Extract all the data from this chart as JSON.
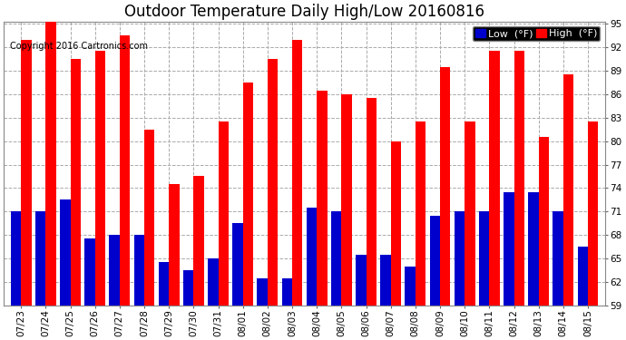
{
  "title": "Outdoor Temperature Daily High/Low 20160816",
  "copyright": "Copyright 2016 Cartronics.com",
  "legend_low": "Low  (°F)",
  "legend_high": "High  (°F)",
  "dates": [
    "07/23",
    "07/24",
    "07/25",
    "07/26",
    "07/27",
    "07/28",
    "07/29",
    "07/30",
    "07/31",
    "08/01",
    "08/02",
    "08/03",
    "08/04",
    "08/05",
    "08/06",
    "08/07",
    "08/08",
    "08/09",
    "08/10",
    "08/11",
    "08/12",
    "08/13",
    "08/14",
    "08/15"
  ],
  "highs": [
    93.0,
    95.5,
    90.5,
    91.5,
    93.5,
    81.5,
    74.5,
    75.5,
    82.5,
    87.5,
    90.5,
    93.0,
    86.5,
    86.0,
    85.5,
    80.0,
    82.5,
    89.5,
    82.5,
    91.5,
    91.5,
    80.5,
    88.5,
    82.5
  ],
  "lows": [
    71.0,
    71.0,
    72.5,
    67.5,
    68.0,
    68.0,
    64.5,
    63.5,
    65.0,
    69.5,
    62.5,
    62.5,
    71.5,
    71.0,
    65.5,
    65.5,
    64.0,
    70.5,
    71.0,
    71.0,
    73.5,
    73.5,
    71.0,
    66.5
  ],
  "ylim_min": 59.0,
  "ylim_max": 95.0,
  "yticks": [
    59.0,
    62.0,
    65.0,
    68.0,
    71.0,
    74.0,
    77.0,
    80.0,
    83.0,
    86.0,
    89.0,
    92.0,
    95.0
  ],
  "bar_width": 0.42,
  "high_color": "#ff0000",
  "low_color": "#0000cc",
  "bg_color": "#ffffff",
  "grid_color": "#aaaaaa",
  "title_fontsize": 12,
  "copyright_fontsize": 7,
  "tick_fontsize": 7.5,
  "legend_fontsize": 8
}
